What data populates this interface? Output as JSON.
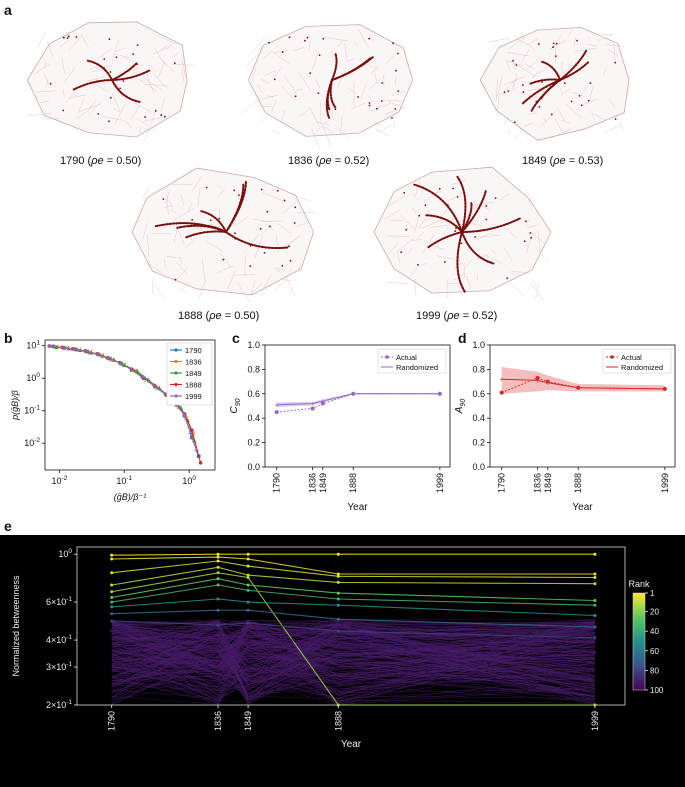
{
  "panels": {
    "a": "a",
    "b": "b",
    "c": "c",
    "d": "d",
    "e": "e"
  },
  "maps": [
    {
      "year": "1790",
      "rho": "0.50"
    },
    {
      "year": "1836",
      "rho": "0.52"
    },
    {
      "year": "1849",
      "rho": "0.53"
    },
    {
      "year": "1888",
      "rho": "0.50"
    },
    {
      "year": "1999",
      "rho": "0.52"
    }
  ],
  "rho_symbol": "ρe",
  "chart_data": [
    {
      "id": "b",
      "type": "scatter",
      "title": "",
      "xlabel": "(ḡB)/β⁻¹",
      "ylabel": "p(ḡB)/β",
      "xscale": "log",
      "yscale": "log",
      "xlim": [
        0.006,
        2.5
      ],
      "ylim": [
        0.0015,
        15
      ],
      "xticks": [
        {
          "v": 0.01,
          "label": "10^-2"
        },
        {
          "v": 0.1,
          "label": "10^-1"
        },
        {
          "v": 1,
          "label": "10^0"
        }
      ],
      "yticks": [
        {
          "v": 0.01,
          "label": "10^-2"
        },
        {
          "v": 0.1,
          "label": "10^-1"
        },
        {
          "v": 1,
          "label": "10^0"
        },
        {
          "v": 10,
          "label": "10^1"
        }
      ],
      "series": [
        {
          "name": "1790",
          "color": "#1f77b4",
          "marker": "square",
          "x": [
            0.008,
            0.012,
            0.018,
            0.027,
            0.04,
            0.06,
            0.09,
            0.13,
            0.2,
            0.3,
            0.45,
            0.65,
            0.85,
            1.1,
            1.4
          ],
          "y": [
            9.5,
            8.6,
            7.7,
            6.6,
            5.4,
            4.0,
            2.8,
            1.8,
            1.0,
            0.55,
            0.3,
            0.15,
            0.07,
            0.015,
            0.004
          ]
        },
        {
          "name": "1836",
          "color": "#ff7f0e",
          "marker": "x",
          "x": [
            0.009,
            0.013,
            0.02,
            0.03,
            0.045,
            0.065,
            0.1,
            0.15,
            0.22,
            0.33,
            0.5,
            0.7,
            0.9,
            1.15
          ],
          "y": [
            9.2,
            8.4,
            7.4,
            6.3,
            5.0,
            3.7,
            2.6,
            1.7,
            0.9,
            0.5,
            0.26,
            0.13,
            0.06,
            0.02
          ]
        },
        {
          "name": "1849",
          "color": "#2ca02c",
          "marker": "triangle",
          "x": [
            0.009,
            0.014,
            0.021,
            0.031,
            0.047,
            0.07,
            0.1,
            0.16,
            0.24,
            0.35,
            0.52,
            0.75,
            0.95,
            1.2
          ],
          "y": [
            9.0,
            8.2,
            7.3,
            6.1,
            4.9,
            3.6,
            2.5,
            1.6,
            0.85,
            0.48,
            0.25,
            0.12,
            0.05,
            0.012
          ]
        },
        {
          "name": "1888",
          "color": "#d62728",
          "marker": "circle",
          "x": [
            0.007,
            0.011,
            0.016,
            0.025,
            0.038,
            0.055,
            0.085,
            0.13,
            0.19,
            0.29,
            0.43,
            0.62,
            0.85,
            1.1,
            1.5
          ],
          "y": [
            9.8,
            8.9,
            8.0,
            6.9,
            5.6,
            4.2,
            3.0,
            1.9,
            1.1,
            0.6,
            0.32,
            0.16,
            0.08,
            0.025,
            0.0025
          ]
        },
        {
          "name": "1999",
          "color": "#9467bd",
          "marker": "plus",
          "x": [
            0.007,
            0.011,
            0.017,
            0.026,
            0.039,
            0.058,
            0.088,
            0.13,
            0.2,
            0.3,
            0.44,
            0.63,
            0.85,
            1.05,
            1.3
          ],
          "y": [
            9.7,
            8.8,
            7.9,
            6.8,
            5.5,
            4.1,
            2.9,
            1.85,
            1.05,
            0.58,
            0.31,
            0.15,
            0.075,
            0.02,
            0.006
          ]
        }
      ]
    },
    {
      "id": "c",
      "type": "line",
      "title": "",
      "xlabel": "Year",
      "ylabel": "C90",
      "xlim": [
        1775,
        2012
      ],
      "ylim": [
        0.0,
        1.0
      ],
      "x": [
        1790,
        1836,
        1849,
        1888,
        1999
      ],
      "xticks": [
        "1790",
        "1836",
        "1849",
        "1888",
        "1999"
      ],
      "yticks": [
        "0.0",
        "0.2",
        "0.4",
        "0.6",
        "0.8",
        "1.0"
      ],
      "series": [
        {
          "name": "Actual",
          "color": "#9467bd",
          "style": "dashed-marker",
          "values": [
            0.45,
            0.48,
            0.52,
            0.6,
            0.6
          ]
        },
        {
          "name": "Randomized",
          "color": "#9467bd",
          "style": "solid",
          "values": [
            0.51,
            0.52,
            0.54,
            0.6,
            0.6
          ],
          "band_low": [
            0.49,
            0.505,
            0.53,
            0.595,
            0.595
          ],
          "band_high": [
            0.53,
            0.535,
            0.555,
            0.605,
            0.605
          ]
        }
      ],
      "legend": "top-right"
    },
    {
      "id": "d",
      "type": "line",
      "title": "",
      "xlabel": "Year",
      "ylabel": "A90",
      "xlim": [
        1775,
        2012
      ],
      "ylim": [
        0.0,
        1.0
      ],
      "x": [
        1790,
        1836,
        1849,
        1888,
        1999
      ],
      "xticks": [
        "1790",
        "1836",
        "1849",
        "1888",
        "1999"
      ],
      "yticks": [
        "0.0",
        "0.2",
        "0.4",
        "0.6",
        "0.8",
        "1.0"
      ],
      "series": [
        {
          "name": "Actual",
          "color": "#d62728",
          "style": "dashed-marker",
          "values": [
            0.61,
            0.73,
            0.7,
            0.65,
            0.64
          ]
        },
        {
          "name": "Randomized",
          "color": "#d62728",
          "style": "solid",
          "values": [
            0.72,
            0.71,
            0.69,
            0.65,
            0.64
          ],
          "band_low": [
            0.6,
            0.62,
            0.63,
            0.62,
            0.62
          ],
          "band_high": [
            0.82,
            0.78,
            0.75,
            0.68,
            0.67
          ]
        }
      ],
      "legend": "top-right"
    },
    {
      "id": "e",
      "type": "line",
      "title": "",
      "xlabel": "Year",
      "ylabel": "Normalized betweenness",
      "yscale": "log",
      "xlim": [
        1775,
        2012
      ],
      "ylim": [
        0.2,
        1.08
      ],
      "xticks": [
        "1790",
        "1836",
        "1849",
        "1888",
        "1999"
      ],
      "x": [
        1790,
        1836,
        1849,
        1888,
        1999
      ],
      "yticks": [
        {
          "v": 1.0,
          "label": "10^0"
        },
        {
          "v": 0.6,
          "label": "6×10^-1"
        },
        {
          "v": 0.4,
          "label": "4×10^-1"
        },
        {
          "v": 0.3,
          "label": "3×10^-1"
        },
        {
          "v": 0.2,
          "label": "2×10^-1"
        }
      ],
      "colorbar": {
        "label": "Rank",
        "ticks": [
          "1",
          "20",
          "40",
          "60",
          "80",
          "100"
        ]
      },
      "background": "#000000",
      "series_note": "100 ranked node trajectories colored by rank (viridis)",
      "series": [
        {
          "rank": 1,
          "values": [
            0.99,
            1.0,
            1.0,
            1.0,
            1.0
          ]
        },
        {
          "rank": 3,
          "values": [
            0.95,
            0.97,
            0.95,
            0.81,
            0.81
          ]
        },
        {
          "rank": 6,
          "values": [
            0.82,
            0.93,
            0.88,
            0.79,
            0.78
          ]
        },
        {
          "rank": 10,
          "values": [
            0.72,
            0.87,
            0.8,
            0.74,
            0.73
          ]
        },
        {
          "rank": 15,
          "values": [
            0.67,
            0.82,
            0.78,
            0.2,
            0.2
          ]
        },
        {
          "rank": 25,
          "values": [
            0.63,
            0.77,
            0.72,
            0.66,
            0.61
          ]
        },
        {
          "rank": 35,
          "values": [
            0.6,
            0.72,
            0.68,
            0.62,
            0.58
          ]
        },
        {
          "rank": 50,
          "values": [
            0.57,
            0.62,
            0.6,
            0.58,
            0.52
          ]
        },
        {
          "rank": 65,
          "values": [
            0.53,
            0.55,
            0.55,
            0.5,
            0.46
          ]
        },
        {
          "rank": 80,
          "values": [
            0.49,
            0.47,
            0.48,
            0.44,
            0.41
          ]
        },
        {
          "rank": 95,
          "values": [
            0.44,
            0.4,
            0.42,
            0.38,
            0.35
          ]
        }
      ]
    }
  ]
}
